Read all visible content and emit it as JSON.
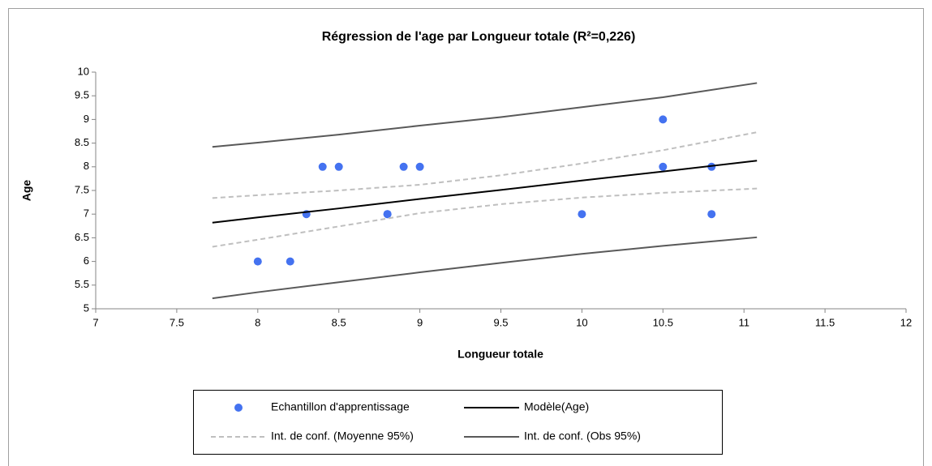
{
  "chart_data": {
    "type": "scatter",
    "title": "Régression de l'age par Longueur totale (R²=0,226)",
    "x_label": "Longueur totale",
    "y_label": "Age",
    "xlim": [
      7,
      12
    ],
    "xticks": [
      7,
      7.5,
      8,
      8.5,
      9,
      9.5,
      10,
      10.5,
      11,
      11.5,
      12
    ],
    "ylim": [
      5,
      10
    ],
    "yticks": [
      5,
      5.5,
      6,
      6.5,
      7,
      7.5,
      8,
      8.5,
      9,
      9.5,
      10
    ],
    "grid": false,
    "series": [
      {
        "name": "Echantillon d'apprentissage",
        "type": "scatter",
        "color": "#4472f0",
        "x": [
          8,
          8.2,
          8.3,
          8.4,
          8.5,
          8.8,
          8.8,
          8.9,
          9,
          10,
          10.5,
          10.5,
          10.8,
          10.8
        ],
        "values": [
          6,
          6,
          7,
          8,
          8,
          7,
          7,
          8,
          8,
          7,
          9,
          8,
          8,
          7
        ]
      },
      {
        "name": "Modèle(Age)",
        "type": "line",
        "color": "#000000",
        "dash": false,
        "x": [
          7.72,
          8,
          8.5,
          9,
          9.5,
          10,
          10.5,
          11.08
        ],
        "values": [
          6.82,
          6.93,
          7.12,
          7.32,
          7.51,
          7.71,
          7.9,
          8.13
        ]
      },
      {
        "name": "Int. de conf. (Moyenne 95%)",
        "type": "line",
        "color": "#bfbfbf",
        "dash": true,
        "x": [
          7.72,
          8,
          8.5,
          9,
          9.5,
          10,
          10.5,
          11.08
        ],
        "values": [
          7.34,
          7.4,
          7.5,
          7.62,
          7.82,
          8.07,
          8.35,
          8.73
        ]
      },
      {
        "name": "Int. de conf. (Moyenne 95%)",
        "type": "line",
        "color": "#bfbfbf",
        "dash": true,
        "legend": false,
        "x": [
          7.72,
          8,
          8.5,
          9,
          9.5,
          10,
          10.5,
          11.08
        ],
        "values": [
          6.31,
          6.46,
          6.74,
          7.02,
          7.21,
          7.35,
          7.45,
          7.54
        ]
      },
      {
        "name": "Int. de conf. (Obs 95%)",
        "type": "line",
        "color": "#595959",
        "dash": false,
        "x": [
          7.72,
          8,
          8.5,
          9,
          9.5,
          10,
          10.5,
          11.08
        ],
        "values": [
          8.42,
          8.51,
          8.68,
          8.87,
          9.05,
          9.26,
          9.47,
          9.77
        ]
      },
      {
        "name": "Int. de conf. (Obs 95%)",
        "type": "line",
        "color": "#595959",
        "dash": false,
        "legend": false,
        "x": [
          7.72,
          8,
          8.5,
          9,
          9.5,
          10,
          10.5,
          11.08
        ],
        "values": [
          5.22,
          5.35,
          5.56,
          5.77,
          5.97,
          6.16,
          6.33,
          6.51
        ]
      }
    ]
  }
}
